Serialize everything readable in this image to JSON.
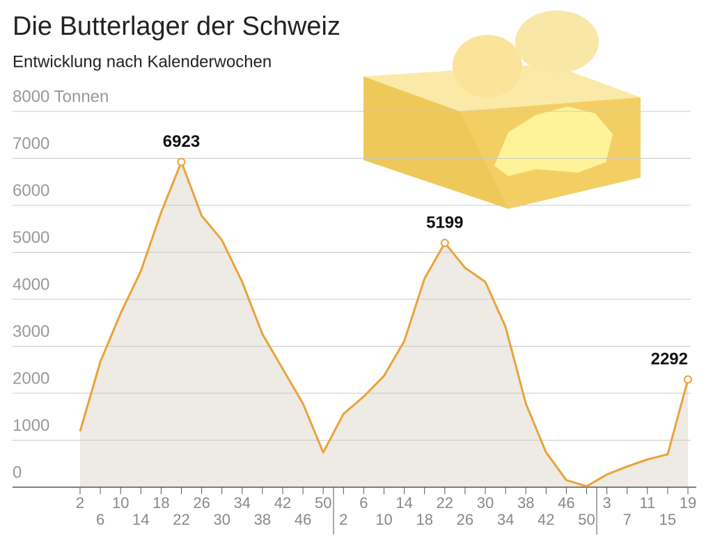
{
  "chart_data": {
    "type": "area",
    "title": "Die Butterlager der Schweiz",
    "subtitle": "Entwicklung nach Kalenderwochen",
    "categories": [
      "2",
      "6",
      "10",
      "14",
      "18",
      "22",
      "26",
      "30",
      "34",
      "38",
      "42",
      "46",
      "50",
      "2",
      "6",
      "10",
      "14",
      "18",
      "22",
      "26",
      "30",
      "34",
      "38",
      "42",
      "46",
      "50",
      "3",
      "7",
      "11",
      "15",
      "19"
    ],
    "values": [
      1190,
      2670,
      3700,
      4600,
      5850,
      6923,
      5780,
      5260,
      4370,
      3260,
      2520,
      1780,
      740,
      1560,
      1930,
      2370,
      3110,
      4440,
      5199,
      4670,
      4370,
      3410,
      1780,
      740,
      150,
      20,
      270,
      440,
      590,
      700,
      2292
    ],
    "value_labels": [
      null,
      null,
      null,
      null,
      null,
      "6923",
      null,
      null,
      null,
      null,
      null,
      null,
      null,
      null,
      null,
      null,
      null,
      null,
      "5199",
      null,
      null,
      null,
      null,
      null,
      null,
      null,
      null,
      null,
      null,
      null,
      "2292"
    ],
    "color": "#e8a33a",
    "fill": "#eeeae4",
    "ylim": [
      0,
      8000
    ],
    "yticks": [
      0,
      1000,
      2000,
      3000,
      4000,
      5000,
      6000,
      7000,
      {
        "value": 8000,
        "label": "8000 Tonnen"
      }
    ],
    "grid": true
  }
}
